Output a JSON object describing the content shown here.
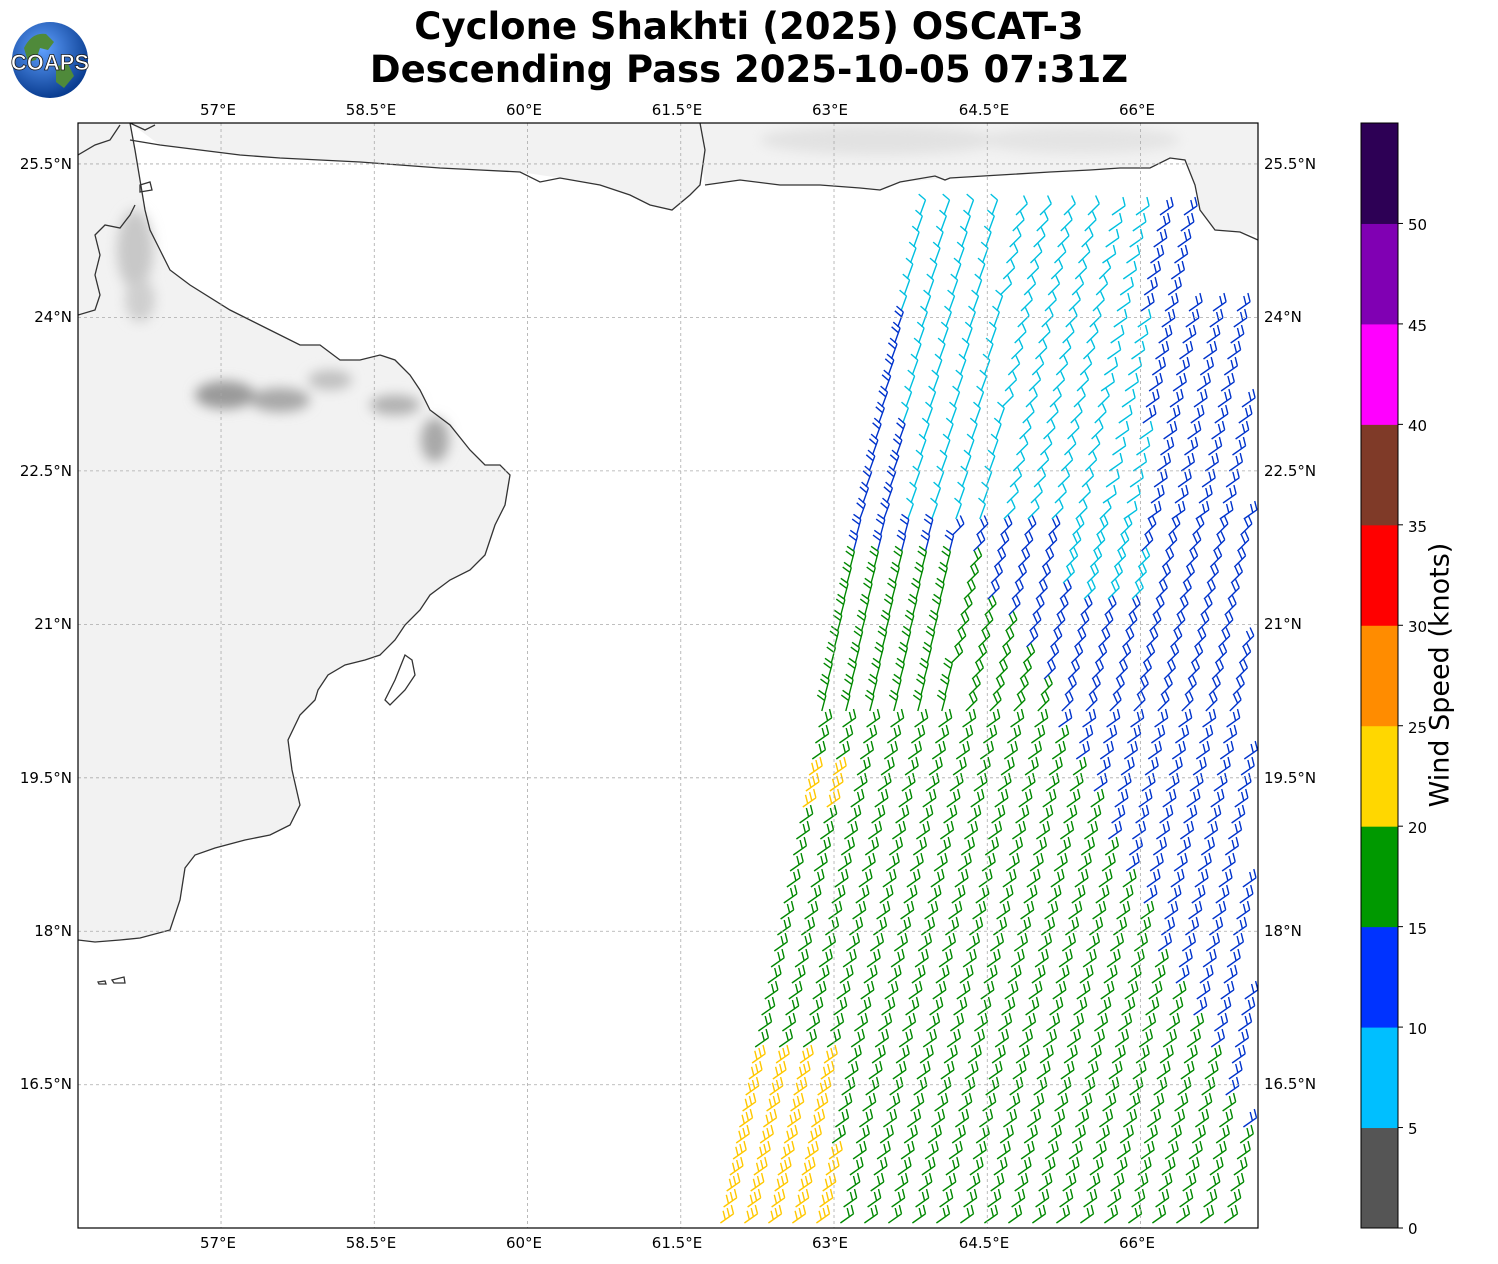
{
  "title": {
    "line1": "Cyclone Shakhti (2025) OSCAT-3",
    "line2": "Descending Pass 2025-10-05 07:31Z"
  },
  "logo": {
    "text": "COAPS"
  },
  "lon_ticks": [
    "57°E",
    "58.5°E",
    "60°E",
    "61.5°E",
    "63°E",
    "64.5°E",
    "66°E"
  ],
  "lat_ticks": [
    "25.5°N",
    "24°N",
    "22.5°N",
    "21°N",
    "19.5°N",
    "18°N",
    "16.5°N"
  ],
  "colorbar": {
    "label": "Wind Speed (knots)",
    "ticks": [
      "0",
      "5",
      "10",
      "15",
      "20",
      "25",
      "30",
      "35",
      "40",
      "45",
      "50"
    ],
    "colors": [
      "#555555",
      "#00bfff",
      "#0033ff",
      "#009900",
      "#ffd700",
      "#ff8c00",
      "#ff0000",
      "#7f3a28",
      "#ff00ff",
      "#8000b3",
      "#2d0055"
    ]
  },
  "map": {
    "lon_range": [
      55.6,
      67.15
    ],
    "lat_range": [
      15.1,
      25.9
    ],
    "grid": true,
    "land_color": "#f2f2f2",
    "coast_color": "#333333"
  },
  "swath_colors": {
    "cyan": "#00c0e0",
    "blue": "#0033cc",
    "green": "#008800",
    "yellow": "#ffc800"
  }
}
